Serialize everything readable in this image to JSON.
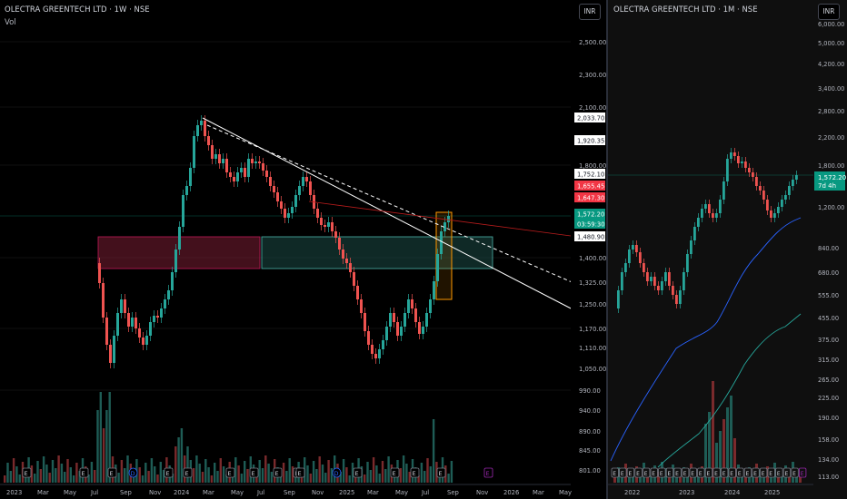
{
  "left": {
    "title": "OLECTRA GREENTECH LTD · 1W · NSE",
    "vol_label": "Vol",
    "currency": "INR",
    "price_ticks": [
      "2,500.00",
      "2,300.00",
      "2,100.00",
      "1,800.00",
      "1,400.00",
      "1,325.00",
      "1,250.00",
      "1,170.00",
      "1,110.00",
      "1,050.00",
      "990.00",
      "940.00",
      "890.00",
      "845.00",
      "801.00"
    ],
    "price_ticks_y": [
      46,
      82,
      118,
      182,
      284,
      311,
      335,
      362,
      383,
      406,
      430,
      452,
      475,
      496,
      518
    ],
    "price_labels": [
      {
        "text": "2,033.70",
        "bg": "#ffffff",
        "fg": "#131722"
      },
      {
        "text": "1,920.35",
        "bg": "#ffffff",
        "fg": "#131722"
      },
      {
        "text": "1,752.10",
        "bg": "#ffffff",
        "fg": "#131722"
      },
      {
        "text": "1,655.45",
        "bg": "#f23645",
        "fg": "#ffffff"
      },
      {
        "text": "1,647.30",
        "bg": "#f23645",
        "fg": "#ffffff"
      },
      {
        "text": "1,572.20",
        "bg": "#089981",
        "fg": "#ffffff"
      },
      {
        "text": "03:59:30",
        "bg": "#089981",
        "fg": "#ffffff"
      },
      {
        "text": "1,480.90",
        "bg": "#ffffff",
        "fg": "#131722"
      }
    ],
    "time_labels": [
      "2023",
      "Mar",
      "May",
      "Jul",
      "Sep",
      "Nov",
      "2024",
      "Mar",
      "May",
      "Jul",
      "Sep",
      "Nov",
      "2025",
      "Mar",
      "May",
      "Jul",
      "Sep",
      "Nov",
      "2026",
      "Mar",
      "May"
    ],
    "event_markers": [
      "E",
      "E",
      "E",
      "D",
      "E",
      "E",
      "E",
      "E",
      "E",
      "E",
      "E",
      "D",
      "E",
      "E",
      "E",
      "E",
      "E",
      "E"
    ]
  },
  "right": {
    "title": "OLECTRA GREENTECH LTD · 1M · NSE",
    "currency": "INR",
    "price_ticks": [
      "6,000.00",
      "5,000.00",
      "4,200.00",
      "3,400.00",
      "2,800.00",
      "2,200.00",
      "1,800.00",
      "1,200.00",
      "840.00",
      "680.00",
      "555.00",
      "455.00",
      "375.00",
      "315.00",
      "265.00",
      "225.00",
      "190.00",
      "158.00",
      "134.00",
      "113.00"
    ],
    "price_ticks_y": [
      26,
      47,
      70,
      97,
      122,
      151,
      182,
      228,
      273,
      300,
      325,
      350,
      374,
      396,
      418,
      438,
      460,
      484,
      506,
      525
    ],
    "last_price": "1,572.20",
    "countdown": "7d 4h",
    "time_labels": [
      "2022",
      "2023",
      "2024",
      "2025"
    ],
    "event_markers": [
      "E",
      "E",
      "E",
      "E",
      "E",
      "E",
      "E",
      "E",
      "E",
      "E",
      "E",
      "E",
      "E",
      "E",
      "E",
      "E",
      "E",
      "E",
      "E",
      "E",
      "E",
      "E",
      "E",
      "E",
      "E"
    ]
  }
}
